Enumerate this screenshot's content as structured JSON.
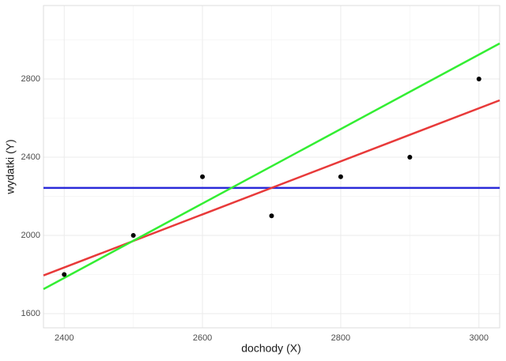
{
  "chart_data": {
    "type": "scatter",
    "x_label": "dochody (X)",
    "y_label": "wydatki (Y)",
    "x": [
      2400,
      2500,
      2600,
      2700,
      2800,
      2900,
      3000
    ],
    "values": [
      1800,
      2000,
      2300,
      2100,
      2300,
      2400,
      2800
    ],
    "color": "#000000",
    "lines": [
      {
        "color": "#2b2bd9",
        "x": [
          2370,
          3030
        ],
        "values": [
          2243,
          2243
        ]
      },
      {
        "color": "#e83a3a",
        "x": [
          2370,
          3030
        ],
        "values": [
          1795,
          2691
        ]
      },
      {
        "color": "#33ee33",
        "x": [
          2370,
          3030
        ],
        "values": [
          1725,
          2982
        ]
      }
    ],
    "xlim": [
      2370,
      3030
    ],
    "ylim": [
      1527,
      3176
    ],
    "xticks": [
      2400,
      2600,
      2800,
      3000
    ],
    "yticks": [
      1600,
      2000,
      2400,
      2800
    ],
    "grid": true
  }
}
